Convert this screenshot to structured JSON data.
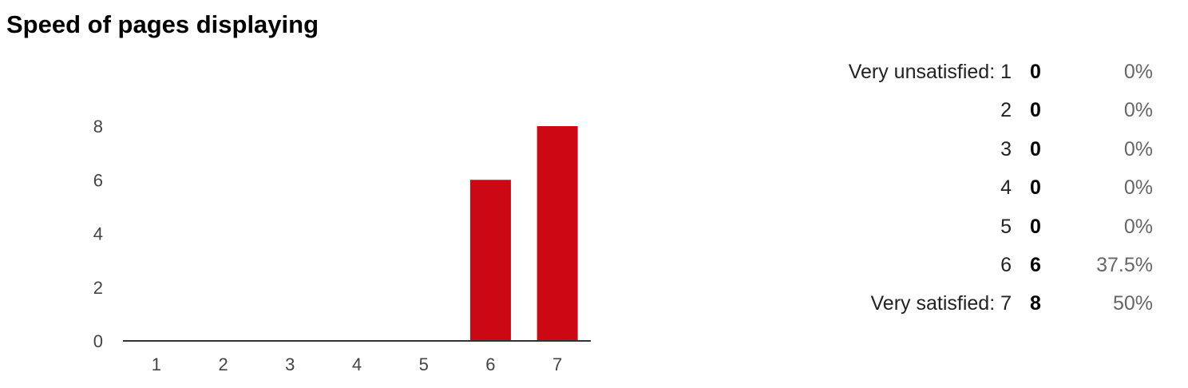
{
  "title": "Speed of pages displaying",
  "chart_data": {
    "type": "bar",
    "categories": [
      "1",
      "2",
      "3",
      "4",
      "5",
      "6",
      "7"
    ],
    "values": [
      0,
      0,
      0,
      0,
      0,
      6,
      8
    ],
    "ylim": [
      0,
      8
    ],
    "yticks": [
      "0",
      "2",
      "4",
      "6",
      "8"
    ],
    "bar_color": "#cc0814",
    "grid": false
  },
  "summary": {
    "rows": [
      {
        "label": "Very unsatisfied: 1",
        "count": "0",
        "pct": "0%"
      },
      {
        "label": "2",
        "count": "0",
        "pct": "0%"
      },
      {
        "label": "3",
        "count": "0",
        "pct": "0%"
      },
      {
        "label": "4",
        "count": "0",
        "pct": "0%"
      },
      {
        "label": "5",
        "count": "0",
        "pct": "0%"
      },
      {
        "label": "6",
        "count": "6",
        "pct": "37.5%"
      },
      {
        "label": "Very satisfied: 7",
        "count": "8",
        "pct": "50%"
      }
    ]
  }
}
